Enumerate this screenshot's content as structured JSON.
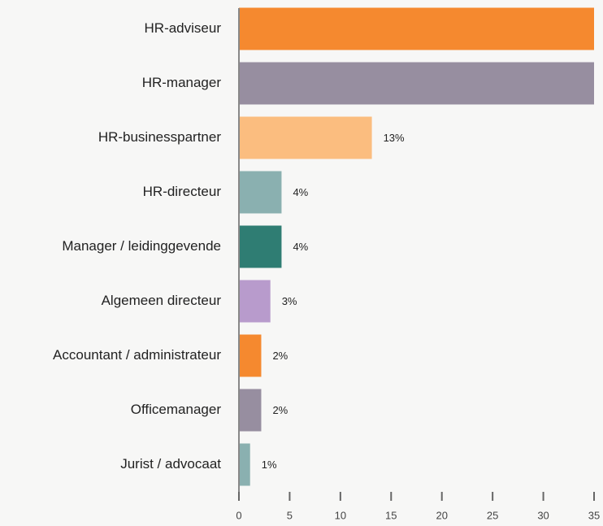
{
  "chart_data": {
    "type": "bar",
    "orientation": "horizontal",
    "categories": [
      "HR-adviseur",
      "HR-manager",
      "HR-businesspartner",
      "HR-directeur",
      "Manager / leidinggevende",
      "Algemeen directeur",
      "Accountant / administrateur",
      "Officemanager",
      "Jurist / advocaat"
    ],
    "values": [
      35,
      35,
      13.1,
      4.2,
      4.2,
      3.1,
      2.2,
      2.2,
      1.1
    ],
    "value_labels": [
      null,
      null,
      "13%",
      "4%",
      "4%",
      "3%",
      "2%",
      "2%",
      "1%"
    ],
    "colors": [
      "#f5892f",
      "#978ea0",
      "#fbbd7f",
      "#8ab0b0",
      "#2f7d73",
      "#b89bcc",
      "#f5892f",
      "#978ea0",
      "#8ab0b0"
    ],
    "xlim": [
      0,
      35
    ],
    "xticks": [
      0,
      5,
      10,
      15,
      20,
      25,
      30,
      35
    ]
  }
}
